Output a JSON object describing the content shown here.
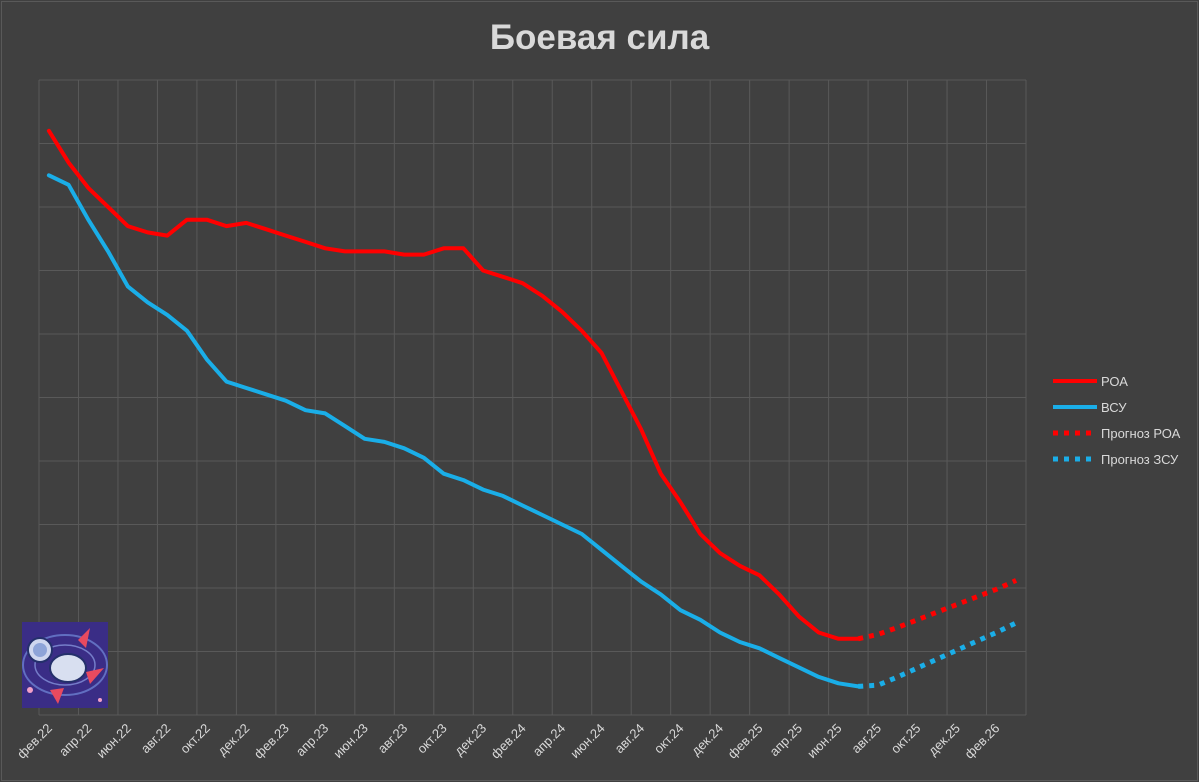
{
  "chart_data": {
    "type": "line",
    "title": "Боевая сила",
    "xlabel": "",
    "ylabel": "",
    "x_labels": [
      "фев.22",
      "апр.22",
      "июн.22",
      "авг.22",
      "окт.22",
      "дек.22",
      "фев.23",
      "апр.23",
      "июн.23",
      "авг.23",
      "окт.23",
      "дек.23",
      "фев.24",
      "апр.24",
      "июн.24",
      "авг.24",
      "окт.24",
      "дек.24",
      "фев.25",
      "апр.25",
      "июн.25",
      "авг.25",
      "окт.25",
      "дек.25",
      "фев.26"
    ],
    "x_count": 50,
    "ylim": [
      0,
      10
    ],
    "grid": true,
    "legend_position": "right",
    "series": [
      {
        "name": "РОА",
        "color": "#ff0000",
        "style": "solid",
        "x": [
          0,
          1,
          2,
          3,
          4,
          5,
          6,
          7,
          8,
          9,
          10,
          11,
          12,
          13,
          14,
          15,
          16,
          17,
          18,
          19,
          20,
          21,
          22,
          23,
          24,
          25,
          26,
          27,
          28,
          29,
          30,
          31,
          32,
          33,
          34,
          35,
          36,
          37,
          38,
          39,
          40,
          41
        ],
        "values": [
          9.2,
          8.7,
          8.3,
          8.0,
          7.7,
          7.6,
          7.55,
          7.8,
          7.8,
          7.7,
          7.75,
          7.65,
          7.55,
          7.45,
          7.35,
          7.3,
          7.3,
          7.3,
          7.25,
          7.25,
          7.35,
          7.35,
          7.0,
          6.9,
          6.8,
          6.6,
          6.35,
          6.05,
          5.7,
          5.1,
          4.5,
          3.8,
          3.35,
          2.85,
          2.55,
          2.35,
          2.2,
          1.9,
          1.55,
          1.3,
          1.2,
          1.2
        ]
      },
      {
        "name": "ВСУ",
        "color": "#1aaee8",
        "style": "solid",
        "x": [
          0,
          1,
          2,
          3,
          4,
          5,
          6,
          7,
          8,
          9,
          10,
          11,
          12,
          13,
          14,
          15,
          16,
          17,
          18,
          19,
          20,
          21,
          22,
          23,
          24,
          25,
          26,
          27,
          28,
          29,
          30,
          31,
          32,
          33,
          34,
          35,
          36,
          37,
          38,
          39,
          40,
          41
        ],
        "values": [
          8.5,
          8.35,
          7.8,
          7.3,
          6.75,
          6.5,
          6.3,
          6.05,
          5.6,
          5.25,
          5.15,
          5.05,
          4.95,
          4.8,
          4.75,
          4.55,
          4.35,
          4.3,
          4.2,
          4.05,
          3.8,
          3.7,
          3.55,
          3.45,
          3.3,
          3.15,
          3.0,
          2.85,
          2.6,
          2.35,
          2.1,
          1.9,
          1.65,
          1.5,
          1.3,
          1.15,
          1.05,
          0.9,
          0.75,
          0.6,
          0.5,
          0.45
        ]
      },
      {
        "name": "Прогноз РОА",
        "color": "#ff0000",
        "style": "dotted",
        "x": [
          41,
          42,
          43,
          44,
          45,
          46,
          47,
          48,
          49
        ],
        "values": [
          1.2,
          1.27,
          1.38,
          1.5,
          1.62,
          1.74,
          1.86,
          1.98,
          2.12
        ]
      },
      {
        "name": "Прогноз ЗСУ",
        "color": "#1aaee8",
        "style": "dotted",
        "x": [
          41,
          42,
          43,
          44,
          45,
          46,
          47,
          48,
          49
        ],
        "values": [
          0.45,
          0.47,
          0.6,
          0.74,
          0.88,
          1.02,
          1.16,
          1.3,
          1.45
        ]
      }
    ]
  },
  "legend_items": [
    {
      "label": "РОА",
      "color": "#ff0000",
      "style": "solid"
    },
    {
      "label": "ВСУ",
      "color": "#1aaee8",
      "style": "solid"
    },
    {
      "label": "Прогноз РОА",
      "color": "#ff0000",
      "style": "dotted"
    },
    {
      "label": "Прогноз ЗСУ",
      "color": "#1aaee8",
      "style": "dotted"
    }
  ],
  "logo": {
    "icon": "astronaut-rocket-logo"
  }
}
